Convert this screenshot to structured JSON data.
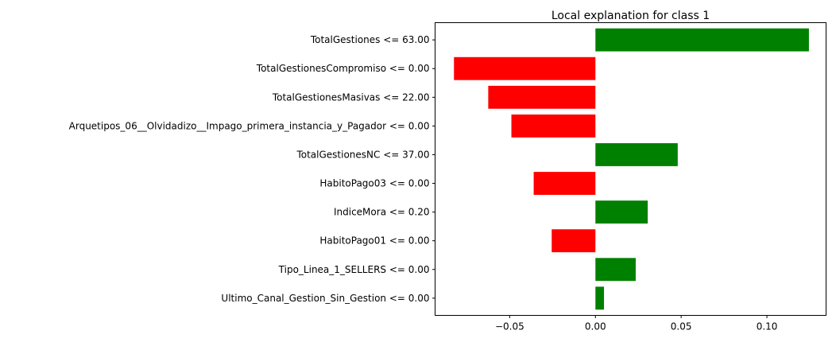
{
  "chart_data": {
    "type": "bar",
    "orientation": "horizontal",
    "title": "Local explanation for class 1",
    "xlabel": "",
    "ylabel": "",
    "xlim": [
      -0.0935,
      0.1345
    ],
    "xticks": [
      {
        "value": -0.05,
        "label": "−0.05"
      },
      {
        "value": 0.0,
        "label": "0.00"
      },
      {
        "value": 0.05,
        "label": "0.05"
      },
      {
        "value": 0.1,
        "label": "0.10"
      }
    ],
    "grid": false,
    "legend": "none",
    "colors": {
      "positive": "#008000",
      "negative": "#ff0000"
    },
    "categories": [
      "TotalGestiones <= 63.00",
      "TotalGestionesCompromiso <= 0.00",
      "TotalGestionesMasivas <= 22.00",
      "Arquetipos_06__Olvidadizo__Impago_primera_instancia_y_Pagador <= 0.00",
      "TotalGestionesNC <= 37.00",
      "HabitoPago03 <= 0.00",
      "IndiceMora <= 0.20",
      "HabitoPago01 <= 0.00",
      "Tipo_Linea_1_SELLERS <= 0.00",
      "Ultimo_Canal_Gestion_Sin_Gestion <= 0.00"
    ],
    "values": [
      0.1245,
      -0.0825,
      -0.0625,
      -0.049,
      0.048,
      -0.036,
      0.0305,
      -0.0255,
      0.0235,
      0.005
    ]
  }
}
